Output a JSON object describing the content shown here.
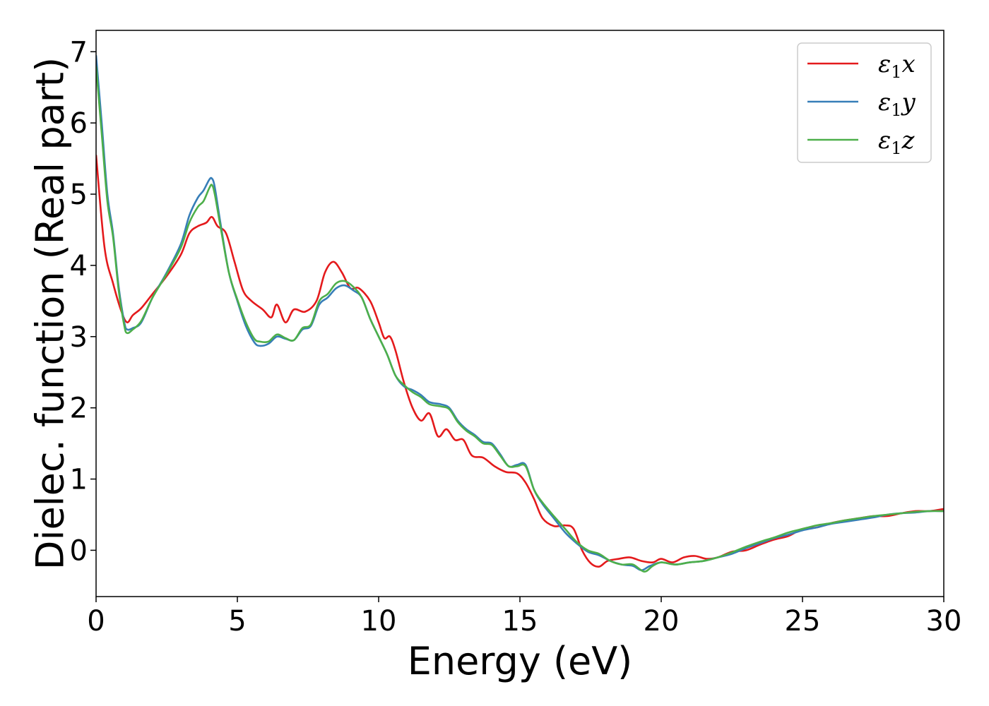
{
  "chart_data": {
    "type": "line",
    "xlabel": "Energy (eV)",
    "ylabel": "Dielec. function (Real part)",
    "xlim": [
      0,
      30
    ],
    "ylim": [
      -0.65,
      7.3
    ],
    "xticks": [
      0,
      5,
      10,
      15,
      20,
      25,
      30
    ],
    "yticks": [
      0,
      1,
      2,
      3,
      4,
      5,
      6,
      7
    ],
    "grid": false,
    "legend_position": "top-right",
    "series": [
      {
        "name": "ε1x",
        "label_main": "ε",
        "label_sub": "1",
        "label_axis": "x",
        "color": "#e41a1c",
        "x": [
          0,
          0.3,
          0.6,
          0.9,
          1.1,
          1.3,
          1.6,
          2.0,
          2.5,
          3.0,
          3.3,
          3.6,
          3.9,
          4.1,
          4.3,
          4.6,
          4.9,
          5.2,
          5.5,
          5.9,
          6.2,
          6.4,
          6.7,
          7.0,
          7.4,
          7.8,
          8.1,
          8.4,
          8.7,
          9.0,
          9.3,
          9.7,
          10.0,
          10.2,
          10.4,
          10.6,
          10.9,
          11.2,
          11.5,
          11.8,
          12.1,
          12.4,
          12.7,
          13.0,
          13.3,
          13.7,
          14.1,
          14.5,
          14.9,
          15.2,
          15.5,
          15.8,
          16.2,
          16.6,
          16.9,
          17.2,
          17.5,
          17.8,
          18.1,
          18.5,
          18.9,
          19.3,
          19.7,
          20.0,
          20.4,
          20.8,
          21.2,
          21.6,
          22.0,
          22.5,
          23.0,
          23.5,
          24.0,
          24.5,
          25.0,
          25.5,
          26.0,
          26.5,
          27.0,
          27.5,
          28.0,
          28.5,
          29.0,
          29.5,
          30.0
        ],
        "y": [
          5.55,
          4.25,
          3.75,
          3.35,
          3.2,
          3.3,
          3.4,
          3.6,
          3.85,
          4.15,
          4.45,
          4.55,
          4.6,
          4.68,
          4.55,
          4.45,
          4.05,
          3.65,
          3.5,
          3.38,
          3.27,
          3.45,
          3.2,
          3.38,
          3.35,
          3.5,
          3.9,
          4.05,
          3.9,
          3.68,
          3.68,
          3.5,
          3.2,
          2.98,
          3.0,
          2.8,
          2.35,
          2.0,
          1.82,
          1.92,
          1.6,
          1.7,
          1.55,
          1.55,
          1.33,
          1.3,
          1.18,
          1.1,
          1.08,
          0.95,
          0.72,
          0.45,
          0.34,
          0.35,
          0.3,
          0.0,
          -0.18,
          -0.23,
          -0.15,
          -0.12,
          -0.1,
          -0.15,
          -0.17,
          -0.12,
          -0.17,
          -0.1,
          -0.08,
          -0.12,
          -0.1,
          -0.02,
          0.0,
          0.08,
          0.15,
          0.2,
          0.3,
          0.32,
          0.38,
          0.42,
          0.45,
          0.48,
          0.48,
          0.52,
          0.55,
          0.55,
          0.58
        ]
      },
      {
        "name": "ε1y",
        "label_main": "ε",
        "label_sub": "1",
        "label_axis": "y",
        "color": "#377eb8",
        "x": [
          0,
          0.2,
          0.4,
          0.6,
          0.8,
          1.0,
          1.1,
          1.3,
          1.6,
          2.0,
          2.5,
          3.0,
          3.3,
          3.6,
          3.8,
          4.0,
          4.1,
          4.2,
          4.4,
          4.7,
          5.0,
          5.3,
          5.6,
          5.8,
          6.1,
          6.4,
          6.7,
          7.0,
          7.3,
          7.6,
          7.9,
          8.2,
          8.5,
          8.8,
          9.1,
          9.4,
          9.7,
          10.0,
          10.3,
          10.6,
          10.9,
          11.2,
          11.5,
          11.8,
          12.2,
          12.5,
          12.8,
          13.1,
          13.4,
          13.7,
          14.0,
          14.3,
          14.6,
          14.9,
          15.2,
          15.5,
          15.8,
          16.2,
          16.6,
          17.0,
          17.4,
          17.8,
          18.2,
          18.6,
          19.0,
          19.3,
          19.6,
          20.0,
          20.5,
          21.0,
          21.5,
          22.0,
          22.5,
          23.0,
          23.5,
          24.0,
          24.5,
          25.0,
          25.5,
          26.0,
          26.5,
          27.0,
          27.5,
          28.0,
          28.5,
          29.0,
          29.5,
          30.0
        ],
        "y": [
          6.95,
          6.0,
          5.0,
          4.45,
          3.7,
          3.2,
          3.1,
          3.12,
          3.2,
          3.55,
          3.9,
          4.3,
          4.7,
          4.95,
          5.05,
          5.2,
          5.22,
          5.1,
          4.6,
          3.9,
          3.5,
          3.15,
          2.92,
          2.87,
          2.9,
          3.0,
          2.97,
          2.95,
          3.1,
          3.15,
          3.45,
          3.55,
          3.68,
          3.72,
          3.65,
          3.55,
          3.25,
          3.0,
          2.75,
          2.45,
          2.3,
          2.25,
          2.18,
          2.08,
          2.05,
          2.0,
          1.82,
          1.7,
          1.62,
          1.52,
          1.5,
          1.35,
          1.18,
          1.2,
          1.2,
          0.85,
          0.65,
          0.45,
          0.25,
          0.1,
          -0.02,
          -0.07,
          -0.15,
          -0.2,
          -0.22,
          -0.28,
          -0.22,
          -0.17,
          -0.2,
          -0.17,
          -0.15,
          -0.1,
          -0.05,
          0.03,
          0.1,
          0.17,
          0.22,
          0.28,
          0.32,
          0.37,
          0.4,
          0.43,
          0.46,
          0.5,
          0.52,
          0.53,
          0.55,
          0.55
        ]
      },
      {
        "name": "ε1z",
        "label_main": "ε",
        "label_sub": "1",
        "label_axis": "z",
        "color": "#4daf4a",
        "x": [
          0,
          0.2,
          0.4,
          0.6,
          0.8,
          1.0,
          1.1,
          1.3,
          1.6,
          2.0,
          2.5,
          3.0,
          3.3,
          3.6,
          3.8,
          4.0,
          4.1,
          4.2,
          4.4,
          4.7,
          5.0,
          5.3,
          5.6,
          5.8,
          6.1,
          6.4,
          6.7,
          7.0,
          7.3,
          7.6,
          7.9,
          8.2,
          8.5,
          8.8,
          9.1,
          9.4,
          9.7,
          10.0,
          10.3,
          10.6,
          10.9,
          11.2,
          11.5,
          11.8,
          12.2,
          12.5,
          12.8,
          13.1,
          13.4,
          13.7,
          14.0,
          14.3,
          14.6,
          14.9,
          15.2,
          15.5,
          15.8,
          16.2,
          16.6,
          17.0,
          17.4,
          17.8,
          18.2,
          18.6,
          19.0,
          19.4,
          19.7,
          20.0,
          20.5,
          21.0,
          21.5,
          22.0,
          22.5,
          23.0,
          23.5,
          24.0,
          24.5,
          25.0,
          25.5,
          26.0,
          26.5,
          27.0,
          27.5,
          28.0,
          28.5,
          29.0,
          29.5,
          30.0
        ],
        "y": [
          6.8,
          5.85,
          4.9,
          4.4,
          3.65,
          3.15,
          3.05,
          3.1,
          3.22,
          3.55,
          3.88,
          4.25,
          4.6,
          4.82,
          4.9,
          5.08,
          5.13,
          5.0,
          4.55,
          3.9,
          3.52,
          3.2,
          2.97,
          2.93,
          2.93,
          3.03,
          2.98,
          2.95,
          3.12,
          3.17,
          3.5,
          3.6,
          3.75,
          3.78,
          3.7,
          3.55,
          3.25,
          3.0,
          2.75,
          2.45,
          2.32,
          2.22,
          2.15,
          2.05,
          2.02,
          1.98,
          1.8,
          1.68,
          1.6,
          1.5,
          1.48,
          1.33,
          1.18,
          1.18,
          1.18,
          0.85,
          0.67,
          0.48,
          0.3,
          0.12,
          0.0,
          -0.05,
          -0.15,
          -0.2,
          -0.2,
          -0.3,
          -0.22,
          -0.17,
          -0.2,
          -0.17,
          -0.15,
          -0.1,
          -0.03,
          0.05,
          0.12,
          0.18,
          0.25,
          0.3,
          0.35,
          0.38,
          0.42,
          0.45,
          0.48,
          0.5,
          0.52,
          0.54,
          0.55,
          0.55
        ]
      }
    ]
  }
}
